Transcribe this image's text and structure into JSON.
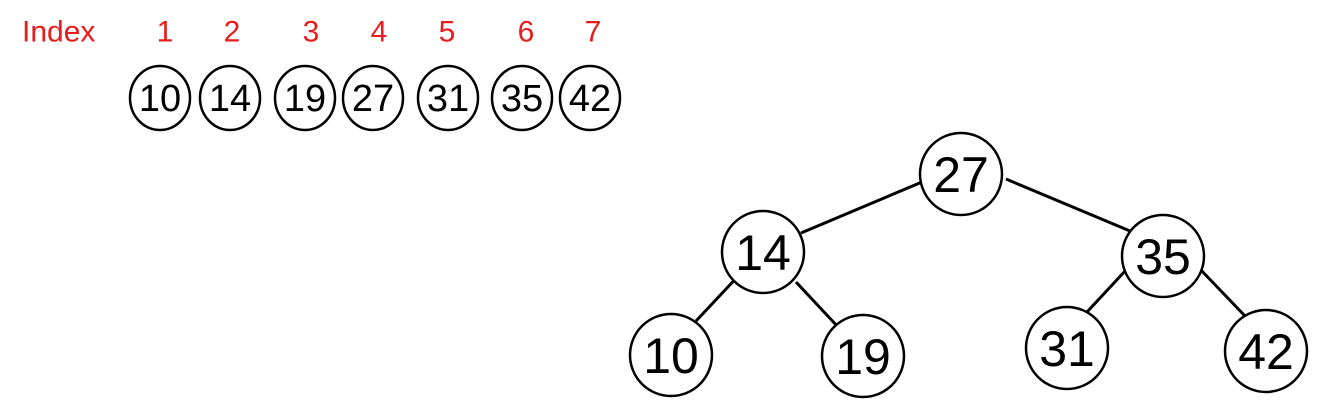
{
  "index_label": "Index",
  "indices": [
    "1",
    "2",
    "3",
    "4",
    "5",
    "6",
    "7"
  ],
  "array_values": [
    "10",
    "14",
    "19",
    "27",
    "31",
    "35",
    "42"
  ],
  "tree": {
    "root": "27",
    "level1": [
      "14",
      "35"
    ],
    "level2": [
      "10",
      "19",
      "31",
      "42"
    ]
  },
  "colors": {
    "index": "#e81c1c",
    "stroke": "#000000",
    "text": "#000000"
  }
}
